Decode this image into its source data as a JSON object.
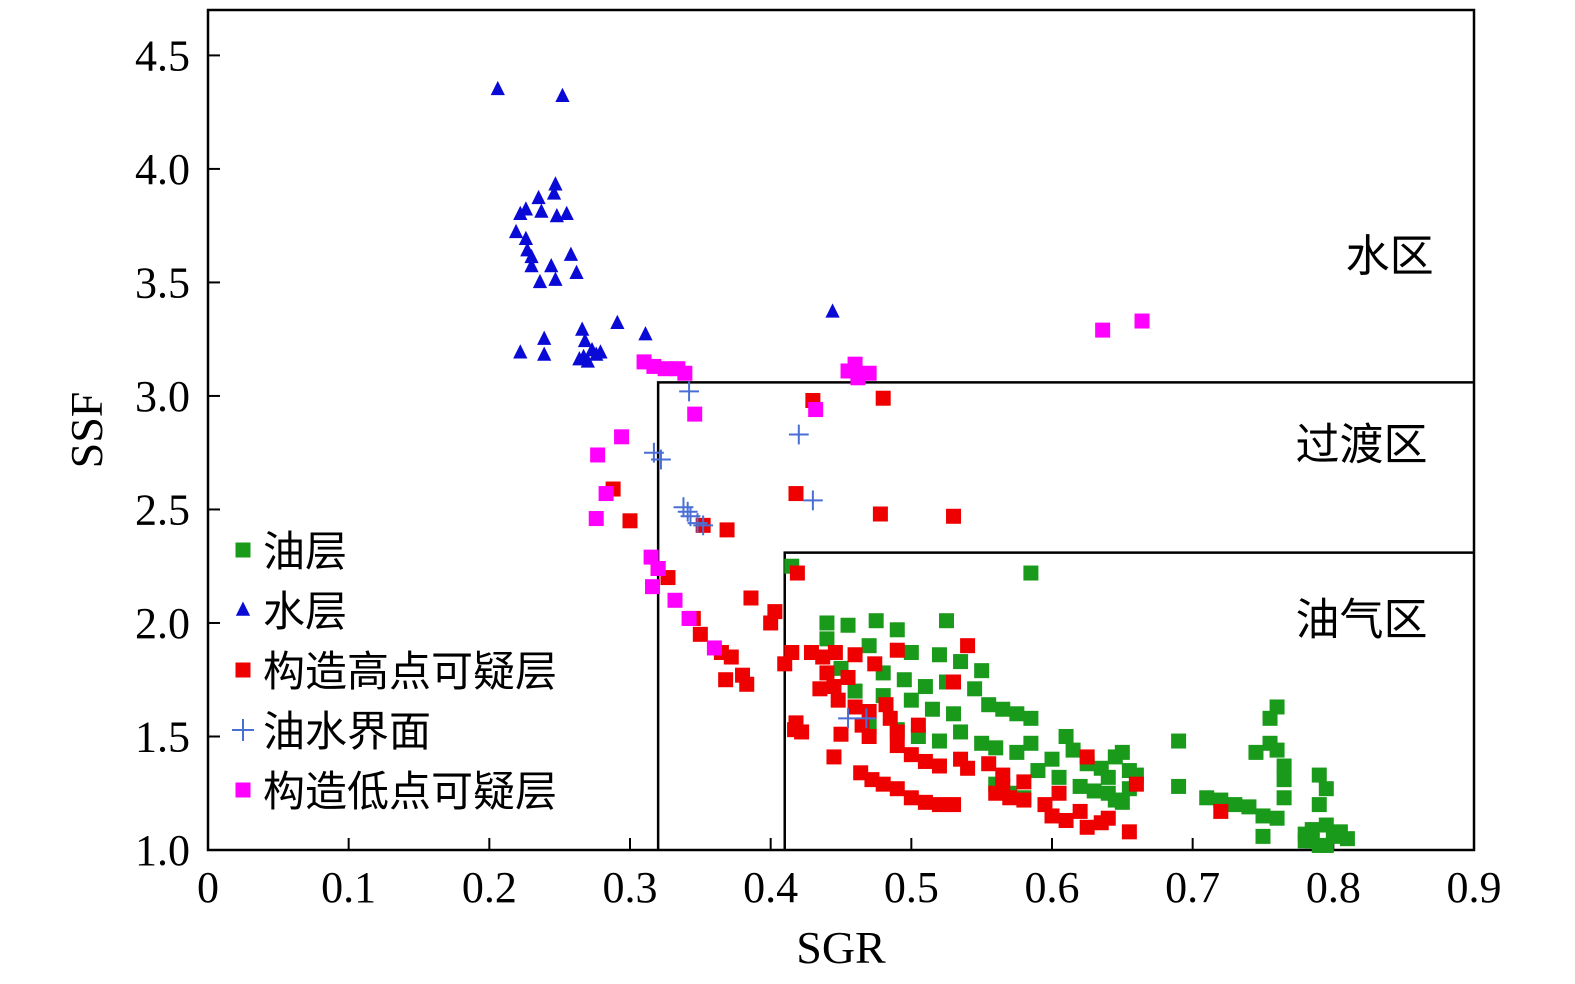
{
  "chart_data": {
    "type": "scatter",
    "xlabel": "SGR",
    "ylabel": "SSF",
    "xlim": [
      0,
      0.9
    ],
    "ylim": [
      1.0,
      4.7
    ],
    "xticks": [
      "0",
      "0.1",
      "0.2",
      "0.3",
      "0.4",
      "0.5",
      "0.6",
      "0.7",
      "0.8",
      "0.9"
    ],
    "yticks": [
      "1.0",
      "1.5",
      "2.0",
      "2.5",
      "3.0",
      "3.5",
      "4.0",
      "4.5"
    ],
    "grid": false,
    "legend_position": "bottom-left",
    "regions": [
      {
        "label": "水区",
        "label_at": [
          0.84,
          3.55
        ]
      },
      {
        "label": "过渡区",
        "label_at": [
          0.82,
          2.72
        ],
        "x_from": 0.32,
        "y_to": 3.06
      },
      {
        "label": "油气区",
        "label_at": [
          0.82,
          1.95
        ],
        "x_from": 0.41,
        "y_to": 2.31
      }
    ],
    "series": [
      {
        "name": "油层",
        "marker": "square",
        "color": "#1a9a1a",
        "points": [
          [
            0.415,
            2.25
          ],
          [
            0.585,
            2.22
          ],
          [
            0.44,
            2.0
          ],
          [
            0.455,
            1.99
          ],
          [
            0.475,
            2.01
          ],
          [
            0.49,
            1.97
          ],
          [
            0.525,
            2.01
          ],
          [
            0.44,
            1.93
          ],
          [
            0.47,
            1.9
          ],
          [
            0.5,
            1.87
          ],
          [
            0.52,
            1.86
          ],
          [
            0.535,
            1.83
          ],
          [
            0.55,
            1.79
          ],
          [
            0.45,
            1.8
          ],
          [
            0.48,
            1.78
          ],
          [
            0.495,
            1.75
          ],
          [
            0.51,
            1.72
          ],
          [
            0.525,
            1.74
          ],
          [
            0.545,
            1.71
          ],
          [
            0.46,
            1.7
          ],
          [
            0.48,
            1.68
          ],
          [
            0.5,
            1.66
          ],
          [
            0.515,
            1.62
          ],
          [
            0.53,
            1.6
          ],
          [
            0.555,
            1.64
          ],
          [
            0.565,
            1.62
          ],
          [
            0.575,
            1.6
          ],
          [
            0.585,
            1.58
          ],
          [
            0.47,
            1.55
          ],
          [
            0.49,
            1.53
          ],
          [
            0.505,
            1.5
          ],
          [
            0.52,
            1.48
          ],
          [
            0.535,
            1.52
          ],
          [
            0.55,
            1.47
          ],
          [
            0.56,
            1.45
          ],
          [
            0.575,
            1.43
          ],
          [
            0.585,
            1.47
          ],
          [
            0.6,
            1.4
          ],
          [
            0.61,
            1.5
          ],
          [
            0.615,
            1.44
          ],
          [
            0.625,
            1.38
          ],
          [
            0.635,
            1.36
          ],
          [
            0.64,
            1.32
          ],
          [
            0.645,
            1.41
          ],
          [
            0.65,
            1.43
          ],
          [
            0.655,
            1.35
          ],
          [
            0.66,
            1.33
          ],
          [
            0.605,
            1.32
          ],
          [
            0.62,
            1.28
          ],
          [
            0.63,
            1.26
          ],
          [
            0.64,
            1.25
          ],
          [
            0.645,
            1.22
          ],
          [
            0.65,
            1.21
          ],
          [
            0.655,
            1.27
          ],
          [
            0.56,
            1.29
          ],
          [
            0.57,
            1.25
          ],
          [
            0.58,
            1.23
          ],
          [
            0.59,
            1.35
          ],
          [
            0.69,
            1.48
          ],
          [
            0.69,
            1.28
          ],
          [
            0.71,
            1.23
          ],
          [
            0.72,
            1.22
          ],
          [
            0.73,
            1.2
          ],
          [
            0.74,
            1.19
          ],
          [
            0.745,
            1.43
          ],
          [
            0.755,
            1.58
          ],
          [
            0.76,
            1.63
          ],
          [
            0.755,
            1.47
          ],
          [
            0.76,
            1.44
          ],
          [
            0.765,
            1.37
          ],
          [
            0.765,
            1.31
          ],
          [
            0.765,
            1.23
          ],
          [
            0.76,
            1.14
          ],
          [
            0.75,
            1.15
          ],
          [
            0.75,
            1.06
          ],
          [
            0.78,
            1.07
          ],
          [
            0.785,
            1.04
          ],
          [
            0.79,
            1.33
          ],
          [
            0.795,
            1.27
          ],
          [
            0.79,
            1.2
          ],
          [
            0.795,
            1.11
          ],
          [
            0.785,
            1.09
          ],
          [
            0.78,
            1.04
          ],
          [
            0.79,
            1.02
          ],
          [
            0.8,
            1.06
          ],
          [
            0.805,
            1.08
          ],
          [
            0.81,
            1.05
          ],
          [
            0.795,
            1.02
          ]
        ]
      },
      {
        "name": "水层",
        "marker": "triangle",
        "color": "#0a0ad6",
        "points": [
          [
            0.206,
            4.35
          ],
          [
            0.252,
            4.32
          ],
          [
            0.247,
            3.93
          ],
          [
            0.246,
            3.89
          ],
          [
            0.235,
            3.87
          ],
          [
            0.226,
            3.82
          ],
          [
            0.222,
            3.8
          ],
          [
            0.237,
            3.81
          ],
          [
            0.248,
            3.79
          ],
          [
            0.255,
            3.8
          ],
          [
            0.219,
            3.72
          ],
          [
            0.226,
            3.69
          ],
          [
            0.227,
            3.64
          ],
          [
            0.23,
            3.61
          ],
          [
            0.258,
            3.62
          ],
          [
            0.244,
            3.57
          ],
          [
            0.262,
            3.54
          ],
          [
            0.23,
            3.57
          ],
          [
            0.236,
            3.5
          ],
          [
            0.247,
            3.51
          ],
          [
            0.239,
            3.25
          ],
          [
            0.222,
            3.19
          ],
          [
            0.239,
            3.18
          ],
          [
            0.266,
            3.29
          ],
          [
            0.268,
            3.24
          ],
          [
            0.267,
            3.17
          ],
          [
            0.273,
            3.2
          ],
          [
            0.279,
            3.19
          ],
          [
            0.276,
            3.18
          ],
          [
            0.264,
            3.16
          ],
          [
            0.27,
            3.15
          ],
          [
            0.444,
            3.37
          ],
          [
            0.291,
            3.32
          ],
          [
            0.311,
            3.27
          ]
        ]
      },
      {
        "name": "构造高点可疑层",
        "marker": "square",
        "color": "#ee0000",
        "points": [
          [
            0.43,
            2.98
          ],
          [
            0.48,
            2.99
          ],
          [
            0.418,
            2.57
          ],
          [
            0.478,
            2.48
          ],
          [
            0.53,
            2.47
          ],
          [
            0.288,
            2.59
          ],
          [
            0.3,
            2.45
          ],
          [
            0.352,
            2.43
          ],
          [
            0.369,
            2.41
          ],
          [
            0.32,
            2.24
          ],
          [
            0.327,
            2.2
          ],
          [
            0.419,
            2.22
          ],
          [
            0.386,
            2.11
          ],
          [
            0.345,
            2.02
          ],
          [
            0.403,
            2.05
          ],
          [
            0.4,
            2.0
          ],
          [
            0.35,
            1.95
          ],
          [
            0.365,
            1.87
          ],
          [
            0.372,
            1.85
          ],
          [
            0.368,
            1.75
          ],
          [
            0.38,
            1.77
          ],
          [
            0.383,
            1.73
          ],
          [
            0.41,
            1.82
          ],
          [
            0.415,
            1.87
          ],
          [
            0.429,
            1.87
          ],
          [
            0.437,
            1.85
          ],
          [
            0.446,
            1.87
          ],
          [
            0.44,
            1.78
          ],
          [
            0.445,
            1.72
          ],
          [
            0.435,
            1.71
          ],
          [
            0.455,
            1.76
          ],
          [
            0.46,
            1.86
          ],
          [
            0.474,
            1.82
          ],
          [
            0.49,
            1.88
          ],
          [
            0.54,
            1.9
          ],
          [
            0.53,
            1.74
          ],
          [
            0.448,
            1.66
          ],
          [
            0.46,
            1.63
          ],
          [
            0.47,
            1.61
          ],
          [
            0.482,
            1.64
          ],
          [
            0.485,
            1.58
          ],
          [
            0.49,
            1.52
          ],
          [
            0.505,
            1.55
          ],
          [
            0.47,
            1.5
          ],
          [
            0.49,
            1.46
          ],
          [
            0.5,
            1.42
          ],
          [
            0.51,
            1.39
          ],
          [
            0.52,
            1.37
          ],
          [
            0.535,
            1.4
          ],
          [
            0.54,
            1.36
          ],
          [
            0.555,
            1.38
          ],
          [
            0.565,
            1.33
          ],
          [
            0.45,
            1.51
          ],
          [
            0.465,
            1.55
          ],
          [
            0.418,
            1.56
          ],
          [
            0.422,
            1.52
          ],
          [
            0.417,
            1.53
          ],
          [
            0.445,
            1.41
          ],
          [
            0.464,
            1.34
          ],
          [
            0.472,
            1.31
          ],
          [
            0.48,
            1.29
          ],
          [
            0.49,
            1.27
          ],
          [
            0.5,
            1.23
          ],
          [
            0.51,
            1.21
          ],
          [
            0.52,
            1.2
          ],
          [
            0.53,
            1.2
          ],
          [
            0.56,
            1.25
          ],
          [
            0.57,
            1.23
          ],
          [
            0.58,
            1.22
          ],
          [
            0.595,
            1.2
          ],
          [
            0.6,
            1.15
          ],
          [
            0.61,
            1.13
          ],
          [
            0.62,
            1.17
          ],
          [
            0.625,
            1.1
          ],
          [
            0.635,
            1.12
          ],
          [
            0.64,
            1.14
          ],
          [
            0.655,
            1.08
          ],
          [
            0.565,
            1.28
          ],
          [
            0.58,
            1.3
          ],
          [
            0.605,
            1.25
          ],
          [
            0.66,
            1.29
          ],
          [
            0.625,
            1.41
          ],
          [
            0.72,
            1.17
          ]
        ]
      },
      {
        "name": "油水界面",
        "marker": "plus",
        "color": "#4a6fd4",
        "points": [
          [
            0.342,
            3.02
          ],
          [
            0.42,
            2.83
          ],
          [
            0.317,
            2.75
          ],
          [
            0.322,
            2.72
          ],
          [
            0.43,
            2.54
          ],
          [
            0.338,
            2.51
          ],
          [
            0.341,
            2.49
          ],
          [
            0.343,
            2.47
          ],
          [
            0.348,
            2.44
          ],
          [
            0.352,
            2.43
          ],
          [
            0.455,
            1.58
          ],
          [
            0.468,
            1.58
          ]
        ]
      },
      {
        "name": "构造低点可疑层",
        "marker": "square",
        "color": "#ff00ff",
        "points": [
          [
            0.664,
            3.33
          ],
          [
            0.636,
            3.29
          ],
          [
            0.31,
            3.15
          ],
          [
            0.317,
            3.13
          ],
          [
            0.325,
            3.12
          ],
          [
            0.334,
            3.12
          ],
          [
            0.339,
            3.1
          ],
          [
            0.46,
            3.14
          ],
          [
            0.455,
            3.11
          ],
          [
            0.47,
            3.1
          ],
          [
            0.462,
            3.08
          ],
          [
            0.432,
            2.94
          ],
          [
            0.346,
            2.92
          ],
          [
            0.294,
            2.82
          ],
          [
            0.277,
            2.74
          ],
          [
            0.283,
            2.57
          ],
          [
            0.276,
            2.46
          ],
          [
            0.315,
            2.29
          ],
          [
            0.32,
            2.24
          ],
          [
            0.316,
            2.16
          ],
          [
            0.332,
            2.1
          ],
          [
            0.342,
            2.02
          ],
          [
            0.36,
            1.89
          ]
        ]
      }
    ]
  }
}
